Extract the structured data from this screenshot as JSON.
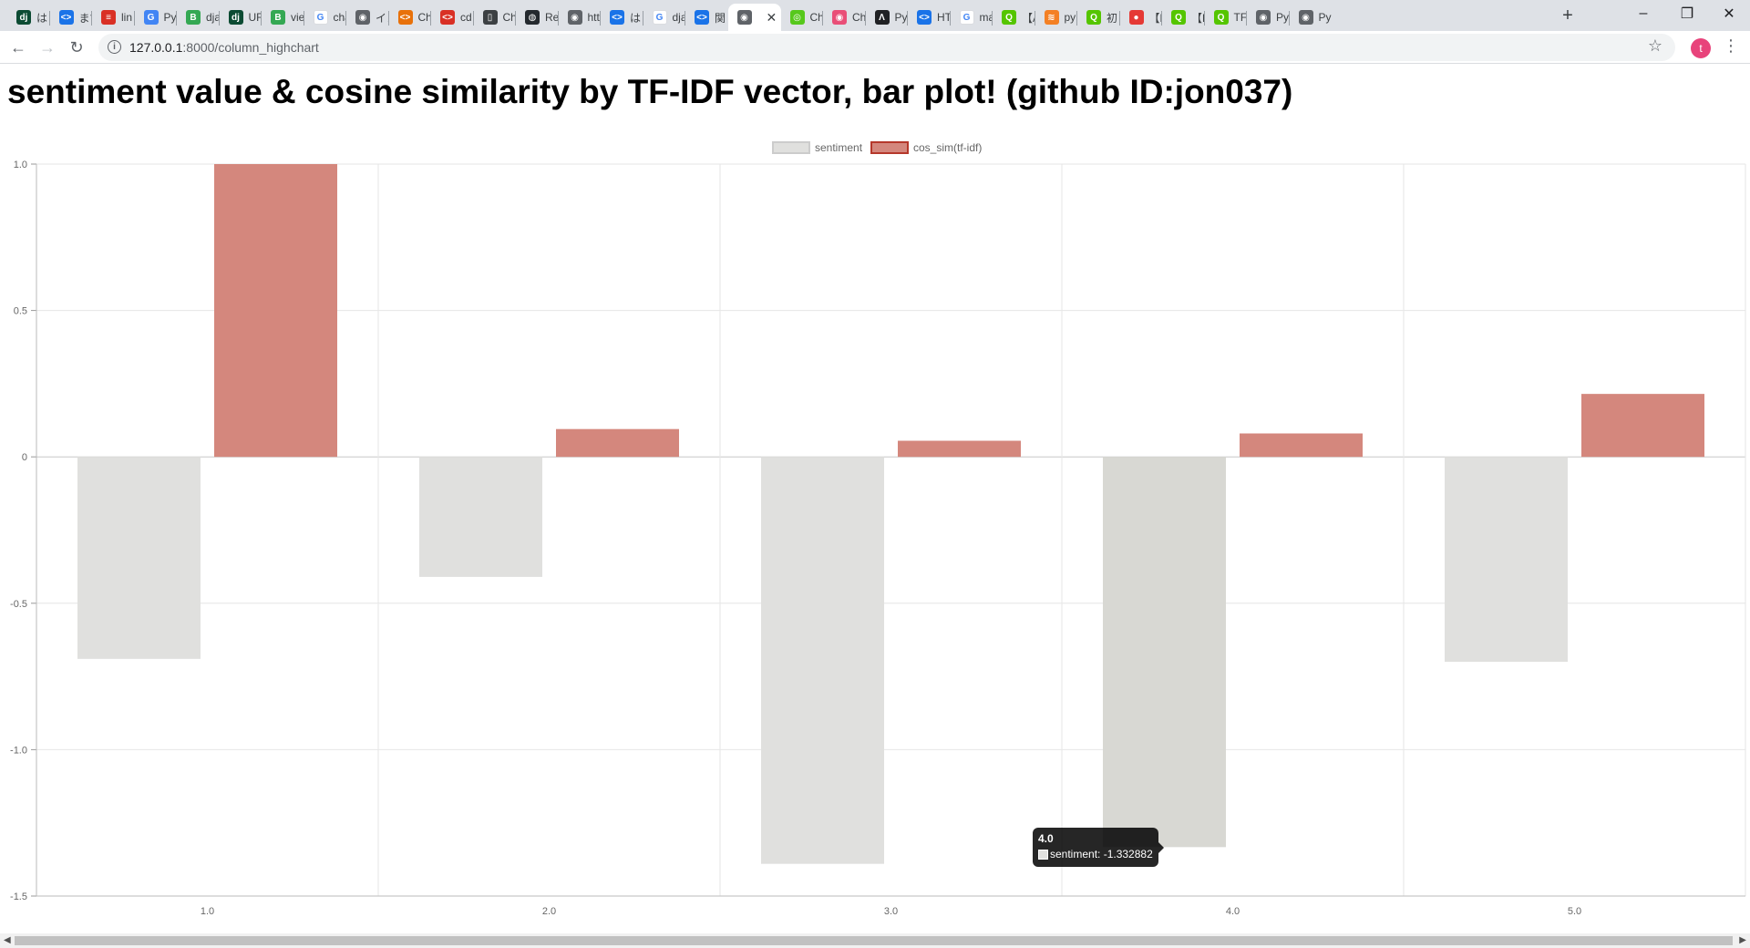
{
  "browser": {
    "tabs": [
      {
        "icon": "django-icon",
        "label": "はじ",
        "color": "#0c4b33",
        "glyph": "dj"
      },
      {
        "icon": "code-icon",
        "label": "まず",
        "color": "#1a73e8",
        "glyph": "<>"
      },
      {
        "icon": "book-icon",
        "label": "lin",
        "color": "#d93025",
        "glyph": "≡"
      },
      {
        "icon": "google-translate-icon",
        "label": "Pyt",
        "color": "#4285f4",
        "glyph": "G"
      },
      {
        "icon": "bootstrap-icon",
        "label": "dja",
        "color": "#34a853",
        "glyph": "B"
      },
      {
        "icon": "django-icon",
        "label": "UR",
        "color": "#0c4b33",
        "glyph": "dj"
      },
      {
        "icon": "bootstrap-icon",
        "label": "vie",
        "color": "#34a853",
        "glyph": "B"
      },
      {
        "icon": "google-icon",
        "label": "cha",
        "color": "#ffffff",
        "glyph": "G"
      },
      {
        "icon": "globe-icon",
        "label": "イン",
        "color": "#5f6368",
        "glyph": "◉"
      },
      {
        "icon": "code-icon",
        "label": "Ch",
        "color": "#e8710a",
        "glyph": "<>"
      },
      {
        "icon": "code-icon",
        "label": "cd",
        "color": "#d93025",
        "glyph": "<>"
      },
      {
        "icon": "book-open-icon",
        "label": "Ch",
        "color": "#3c4043",
        "glyph": "▯"
      },
      {
        "icon": "github-icon",
        "label": "Re",
        "color": "#24292e",
        "glyph": "◍"
      },
      {
        "icon": "globe-icon",
        "label": "htt",
        "color": "#5f6368",
        "glyph": "◉"
      },
      {
        "icon": "code-icon",
        "label": "は",
        "color": "#1a73e8",
        "glyph": "<>"
      },
      {
        "icon": "google-icon",
        "label": "dja",
        "color": "#ffffff",
        "glyph": "G"
      },
      {
        "icon": "code-icon",
        "label": "関",
        "color": "#1a73e8",
        "glyph": "<>"
      },
      {
        "icon": "globe-icon",
        "label": "",
        "color": "#5f6368",
        "glyph": "◉"
      },
      {
        "icon": "chatwork-icon",
        "label": "Ch",
        "color": "#57c81c",
        "glyph": "◎"
      },
      {
        "icon": "chatwork-icon",
        "label": "Ch",
        "color": "#e94e77",
        "glyph": "◉"
      },
      {
        "icon": "arch-icon",
        "label": "Py",
        "color": "#202124",
        "glyph": "Λ"
      },
      {
        "icon": "code-icon",
        "label": "HT",
        "color": "#1a73e8",
        "glyph": "<>"
      },
      {
        "icon": "google-icon",
        "label": "ma",
        "color": "#ffffff",
        "glyph": "G"
      },
      {
        "icon": "qiita-icon",
        "label": "【A",
        "color": "#55c500",
        "glyph": "Q"
      },
      {
        "icon": "stackoverflow-icon",
        "label": "py",
        "color": "#f48024",
        "glyph": "≋"
      },
      {
        "icon": "qiita-icon",
        "label": "初",
        "color": "#55c500",
        "glyph": "Q"
      },
      {
        "icon": "red-dot-icon",
        "label": "【R",
        "color": "#e53935",
        "glyph": "●"
      },
      {
        "icon": "qiita-icon",
        "label": "【P",
        "color": "#55c500",
        "glyph": "Q"
      },
      {
        "icon": "qiita-icon",
        "label": "TF",
        "color": "#55c500",
        "glyph": "Q"
      },
      {
        "icon": "globe-icon",
        "label": "Py",
        "color": "#5f6368",
        "glyph": "◉"
      },
      {
        "icon": "globe-icon",
        "label": "Py",
        "color": "#5f6368",
        "glyph": "◉"
      }
    ],
    "active_tab_index": 17,
    "new_tab": "+",
    "url_host": "127.0.0.1",
    "url_path": ":8000/column_highchart",
    "avatar_letter": "t"
  },
  "page": {
    "title": "sentiment value & cosine similarity by TF-IDF vector, bar plot! (github ID:jon037)"
  },
  "tooltip": {
    "title": "4.0",
    "text": "sentiment: -1.332882"
  },
  "chart_data": {
    "type": "bar",
    "categories": [
      "1.0",
      "2.0",
      "3.0",
      "4.0",
      "5.0"
    ],
    "series": [
      {
        "name": "sentiment",
        "color": "#e0e0de",
        "border": "#cccccc",
        "values": [
          -0.69,
          -0.41,
          -1.39,
          -1.332882,
          -0.7
        ]
      },
      {
        "name": "cos_sim(tf-idf)",
        "color": "#d4877d",
        "border": "#b5382b",
        "values": [
          1.0,
          0.095,
          0.055,
          0.08,
          0.215
        ]
      }
    ],
    "ylim": [
      -1.5,
      1.0
    ],
    "yticks": [
      1.0,
      0.5,
      0,
      -0.5,
      -1.0,
      -1.5
    ],
    "ytick_labels": [
      "1.0",
      "0.5",
      "0",
      "-0.5",
      "-1.0",
      "-1.5"
    ],
    "legend": "top-center",
    "highlighted_category": "4.0",
    "highlight_color": "#d8d8d3"
  }
}
